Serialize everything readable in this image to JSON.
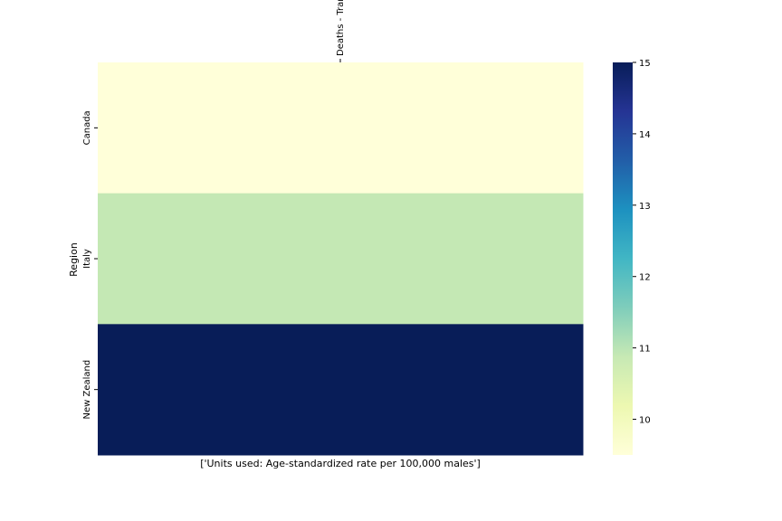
{
  "chart_data": {
    "type": "heatmap",
    "title": "",
    "xlabel": "['Units used: Age-standardized rate per 100,000 males']",
    "ylabel": "Region",
    "x_categories": [
      "Deaths - Transport Accidents"
    ],
    "y_categories": [
      "Canada",
      "Italy",
      "New Zealand"
    ],
    "values": [
      [
        9.5
      ],
      [
        10.9
      ],
      [
        15.0
      ]
    ],
    "colorbar": {
      "colormap": "YlGnBu",
      "range": [
        9.5,
        15.0
      ],
      "ticks": [
        10,
        11,
        12,
        13,
        14,
        15
      ]
    },
    "grid": false
  }
}
